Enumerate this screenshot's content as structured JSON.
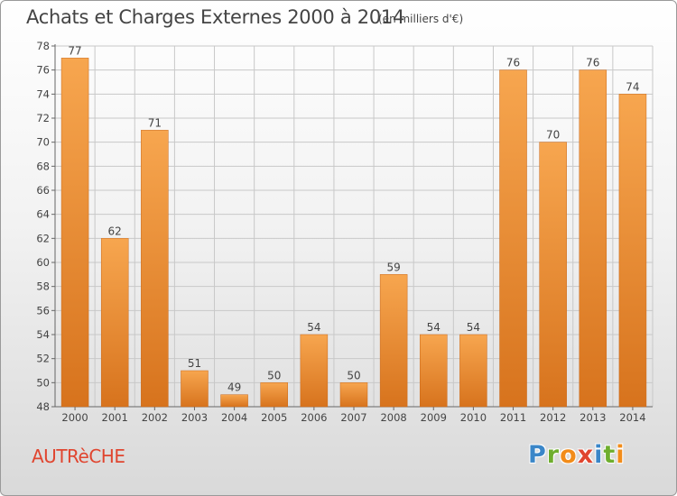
{
  "header": {
    "title": "Achats et Charges Externes 2000 à 2014",
    "unit": "(en milliers d'€)"
  },
  "footer": {
    "commune": "AUTRèCHE",
    "logo_letters": [
      {
        "char": "P",
        "color": "#3a86c8"
      },
      {
        "char": "r",
        "color": "#6fae2e"
      },
      {
        "char": "o",
        "color": "#f28c1a"
      },
      {
        "char": "x",
        "color": "#e0452f"
      },
      {
        "char": "i",
        "color": "#3a86c8"
      },
      {
        "char": "t",
        "color": "#6fae2e"
      },
      {
        "char": "i",
        "color": "#f28c1a"
      }
    ]
  },
  "colors": {
    "bar_light": "#f7a64f",
    "bar_dark": "#d7731d",
    "grid": "#c8c8c8",
    "text": "#444444"
  },
  "chart_data": {
    "type": "bar",
    "title": "Achats et Charges Externes 2000 à 2014",
    "subtitle": "(en milliers d'€)",
    "xlabel": "",
    "ylabel": "",
    "categories": [
      "2000",
      "2001",
      "2002",
      "2003",
      "2004",
      "2005",
      "2006",
      "2007",
      "2008",
      "2009",
      "2010",
      "2011",
      "2012",
      "2013",
      "2014"
    ],
    "values": [
      77,
      62,
      71,
      51,
      49,
      50,
      54,
      50,
      59,
      54,
      54,
      76,
      70,
      76,
      74
    ],
    "ylim": [
      48,
      78
    ],
    "yticks": [
      48,
      50,
      52,
      54,
      56,
      58,
      60,
      62,
      64,
      66,
      68,
      70,
      72,
      74,
      76,
      78
    ],
    "grid": true,
    "legend": "none"
  }
}
